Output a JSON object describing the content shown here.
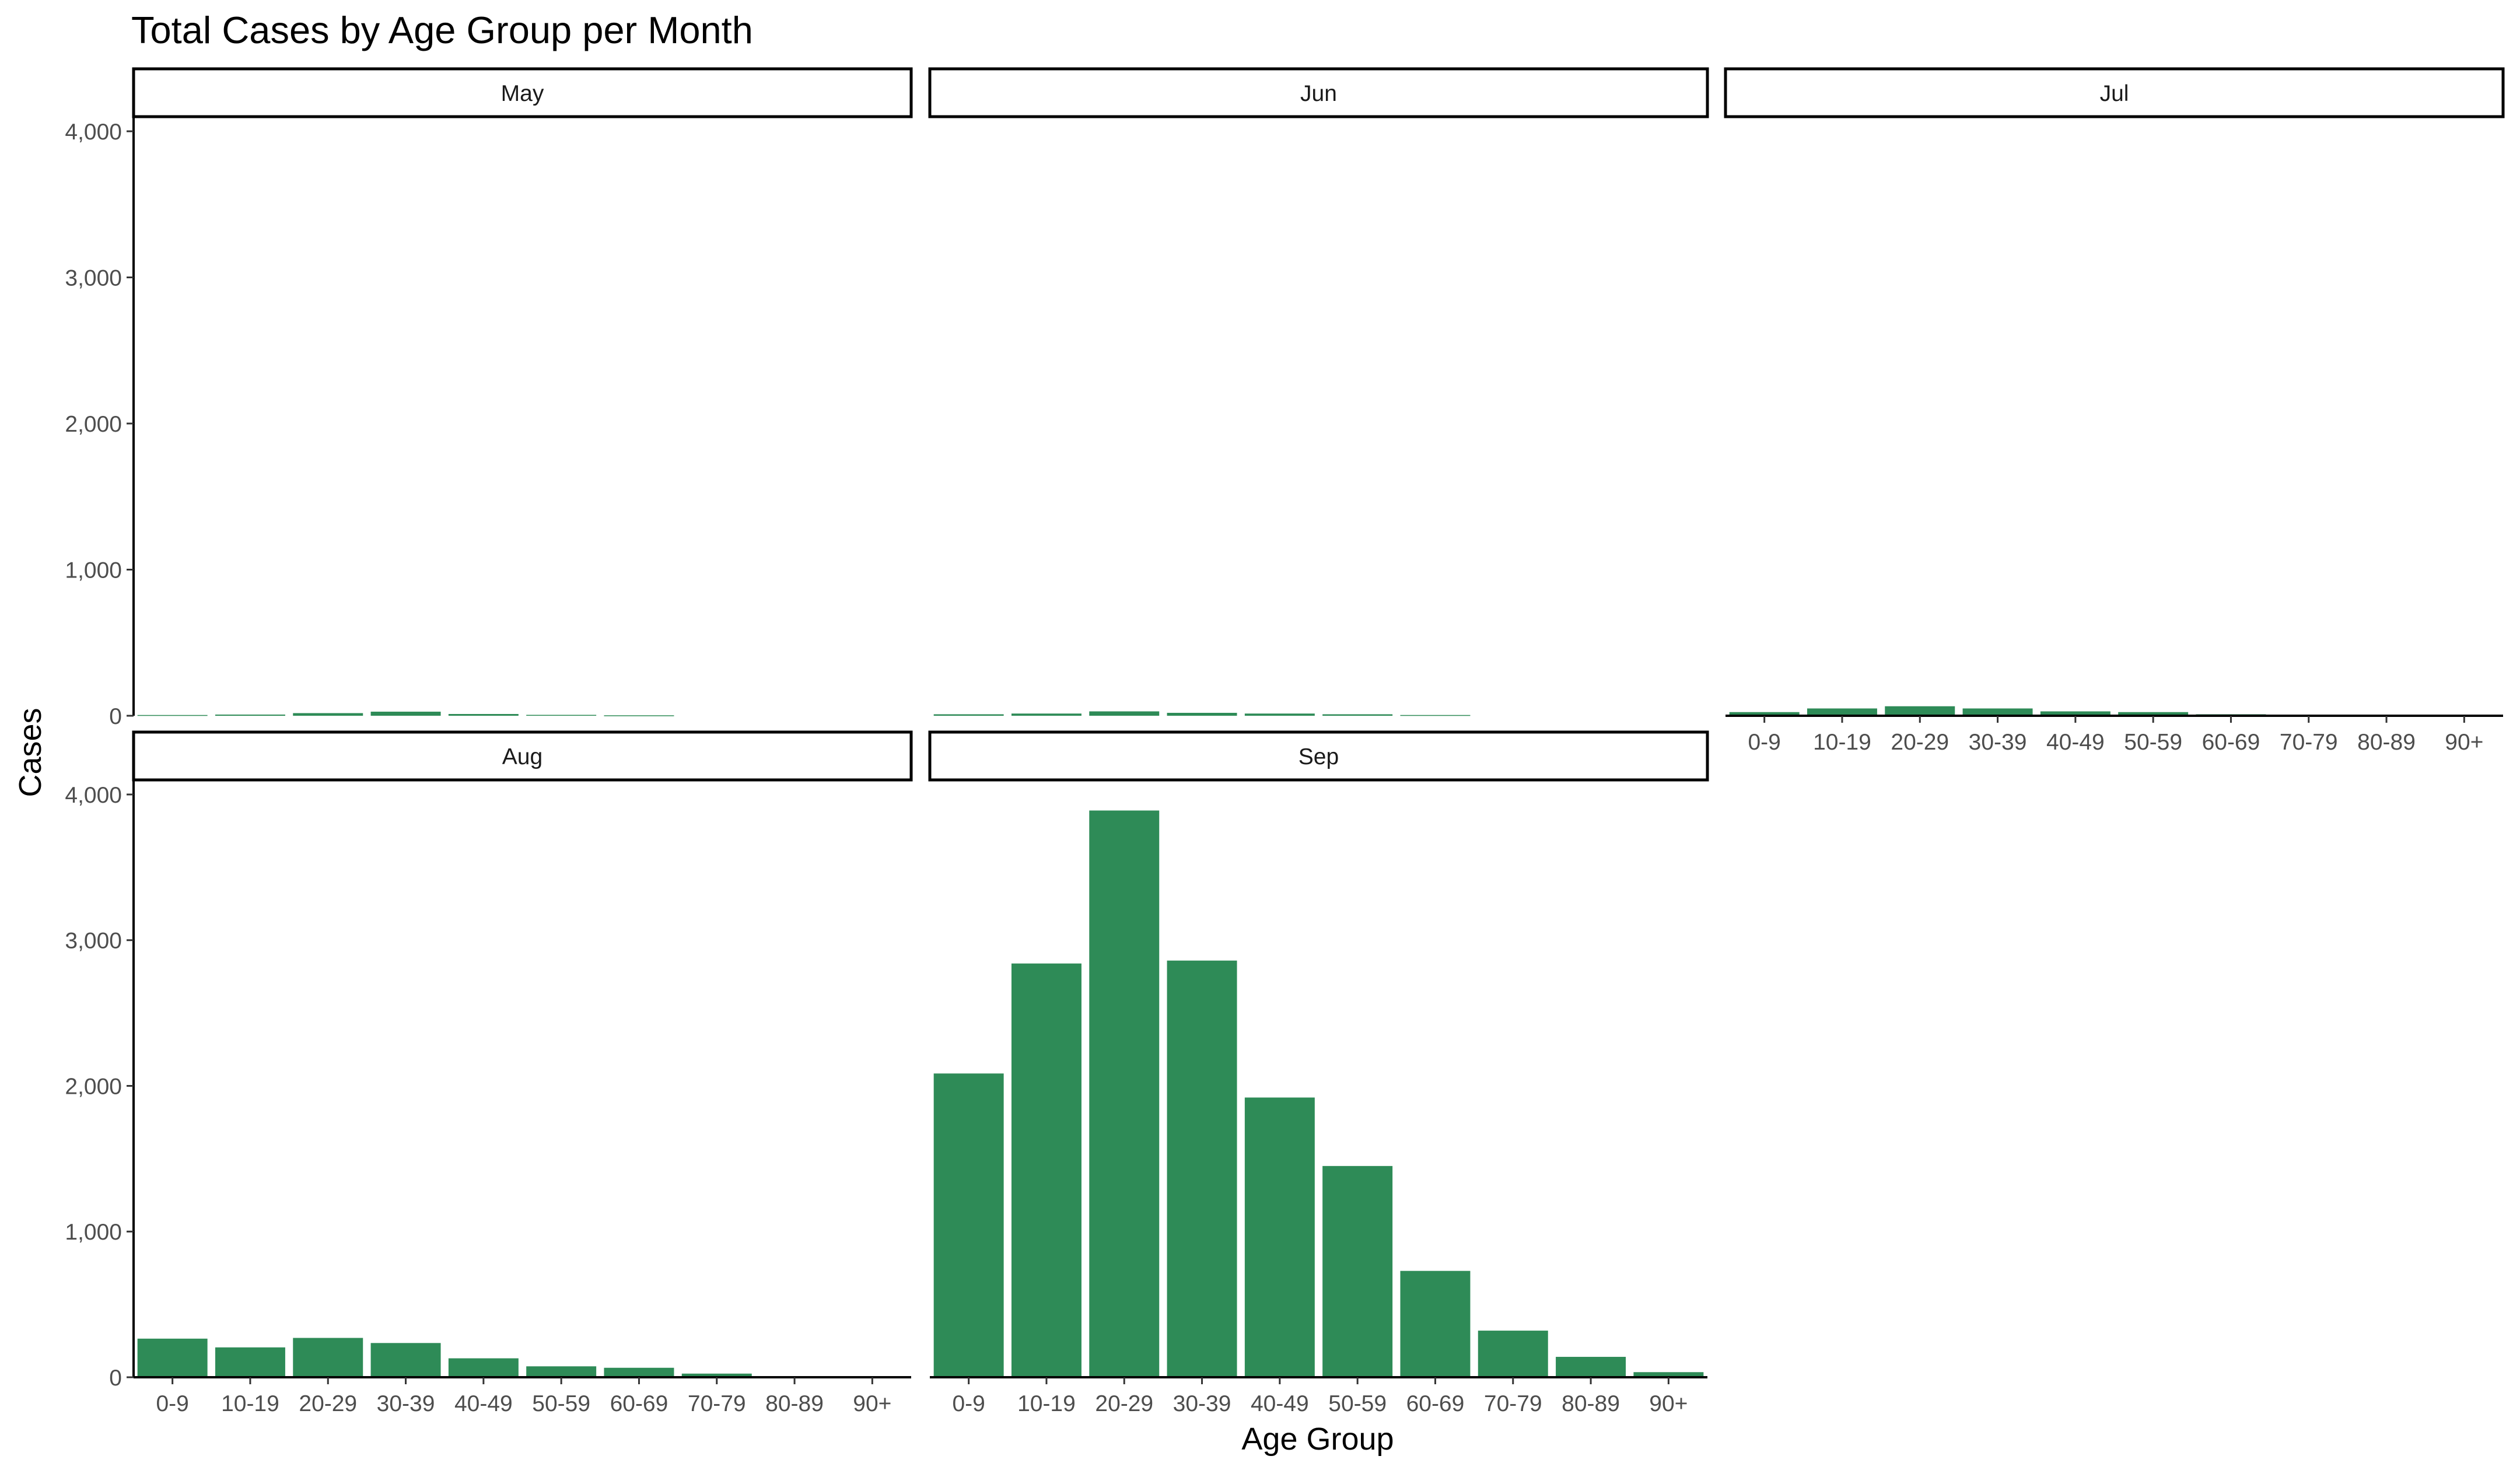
{
  "chart_data": {
    "type": "bar",
    "title": "Total Cases by Age Group per Month",
    "xlabel": "Age Group",
    "ylabel": "Cases",
    "ylim": [
      0,
      4100
    ],
    "yticks": [
      0,
      1000,
      2000,
      3000,
      4000
    ],
    "ytick_labels": [
      "0",
      "1,000",
      "2,000",
      "3,000",
      "4,000"
    ],
    "categories": [
      "0-9",
      "10-19",
      "20-29",
      "30-39",
      "40-49",
      "50-59",
      "60-69",
      "70-79",
      "80-89",
      "90+"
    ],
    "bar_color": "#2e8b57",
    "grid": false,
    "legend": "none",
    "facets": [
      {
        "name": "May",
        "values": [
          5,
          8,
          18,
          28,
          12,
          6,
          3,
          0,
          0,
          0
        ]
      },
      {
        "name": "Jun",
        "values": [
          10,
          15,
          30,
          20,
          15,
          10,
          5,
          0,
          0,
          0
        ]
      },
      {
        "name": "Jul",
        "values": [
          25,
          50,
          65,
          50,
          30,
          25,
          10,
          0,
          0,
          0
        ]
      },
      {
        "name": "Aug",
        "values": [
          265,
          205,
          270,
          235,
          130,
          75,
          65,
          25,
          8,
          0
        ]
      },
      {
        "name": "Sep",
        "values": [
          2085,
          2840,
          3890,
          2860,
          1920,
          1450,
          730,
          320,
          140,
          35
        ]
      }
    ]
  }
}
